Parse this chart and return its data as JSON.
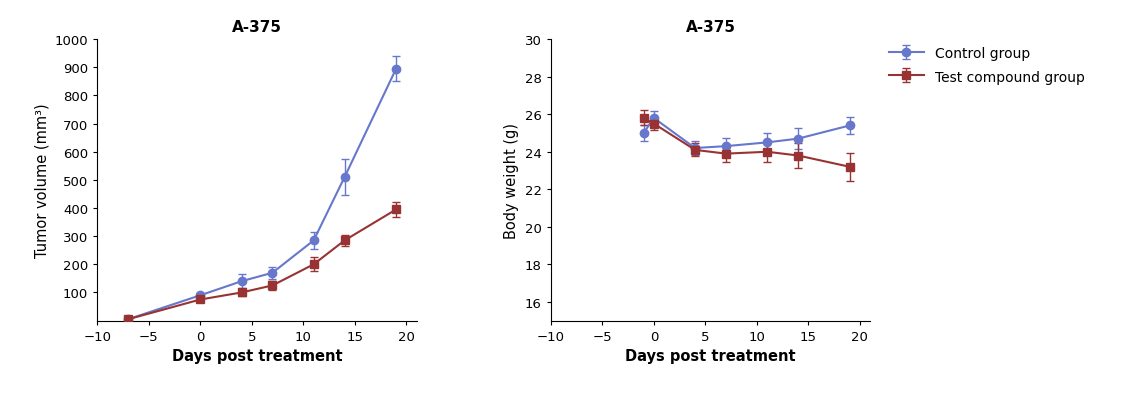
{
  "title1": "A-375",
  "title2": "A-375",
  "xlabel": "Days post treatment",
  "ylabel1": "Tumor volume (mm³)",
  "ylabel2": "Body weight (g)",
  "control_color": "#6677cc",
  "test_color": "#993333",
  "tumor_days": [
    -7,
    0,
    4,
    7,
    11,
    14,
    19
  ],
  "tumor_control": [
    5,
    90,
    140,
    170,
    285,
    510,
    895
  ],
  "tumor_control_err": [
    2,
    8,
    25,
    22,
    30,
    65,
    45
  ],
  "tumor_test": [
    5,
    75,
    100,
    125,
    200,
    285,
    395
  ],
  "tumor_test_err": [
    2,
    7,
    12,
    15,
    25,
    20,
    28
  ],
  "bw_days": [
    -1,
    0,
    4,
    7,
    11,
    14,
    19
  ],
  "bw_control": [
    25.0,
    25.8,
    24.2,
    24.3,
    24.5,
    24.7,
    25.4
  ],
  "bw_control_err": [
    0.4,
    0.35,
    0.35,
    0.45,
    0.5,
    0.55,
    0.45
  ],
  "bw_test": [
    25.8,
    25.5,
    24.1,
    23.9,
    24.0,
    23.8,
    23.2
  ],
  "bw_test_err": [
    0.4,
    0.35,
    0.35,
    0.45,
    0.55,
    0.65,
    0.75
  ],
  "legend_control": "Control group",
  "legend_test": "Test compound group",
  "tumor_xlim": [
    -10,
    21
  ],
  "tumor_ylim": [
    0,
    1000
  ],
  "tumor_xticks": [
    -10,
    -5,
    0,
    5,
    10,
    15,
    20
  ],
  "tumor_yticks": [
    100,
    200,
    300,
    400,
    500,
    600,
    700,
    800,
    900,
    1000
  ],
  "bw_xlim": [
    -10,
    21
  ],
  "bw_ylim": [
    15,
    30
  ],
  "bw_xticks": [
    -10,
    -5,
    0,
    5,
    10,
    15,
    20
  ],
  "bw_yticks": [
    16,
    18,
    20,
    22,
    24,
    26,
    28,
    30
  ]
}
